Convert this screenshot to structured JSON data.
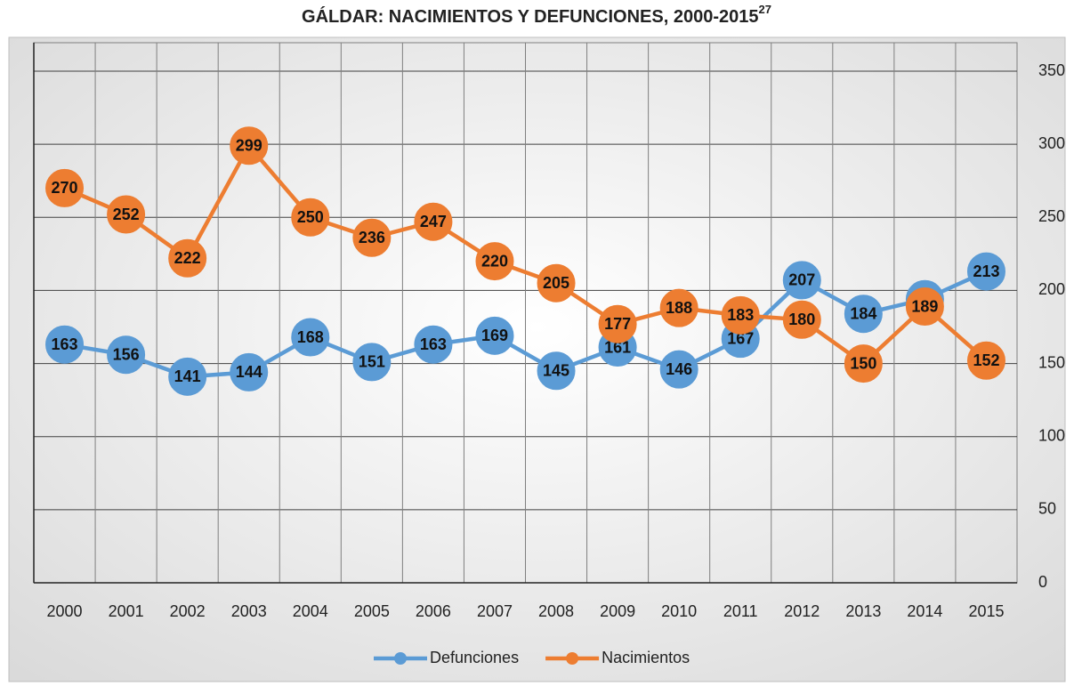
{
  "chart_data": {
    "type": "line",
    "title": "GÁLDAR: NACIMIENTOS Y DEFUNCIONES, 2000-2015",
    "title_superscript": "27",
    "categories": [
      "2000",
      "2001",
      "2002",
      "2003",
      "2004",
      "2005",
      "2006",
      "2007",
      "2008",
      "2009",
      "2010",
      "2011",
      "2012",
      "2013",
      "2014",
      "2015"
    ],
    "series": [
      {
        "name": "Defunciones",
        "color": "#5b9bd5",
        "values": [
          163,
          156,
          141,
          144,
          168,
          151,
          163,
          169,
          145,
          161,
          146,
          167,
          207,
          184,
          194,
          213
        ]
      },
      {
        "name": "Nacimientos",
        "color": "#ed7d31",
        "values": [
          270,
          252,
          222,
          299,
          250,
          236,
          247,
          220,
          205,
          177,
          188,
          183,
          180,
          150,
          189,
          152
        ]
      }
    ],
    "ylim": [
      0,
      350
    ],
    "yticks": [
      0,
      50,
      100,
      150,
      200,
      250,
      300,
      350
    ],
    "grid": true,
    "legend": "bottom"
  }
}
